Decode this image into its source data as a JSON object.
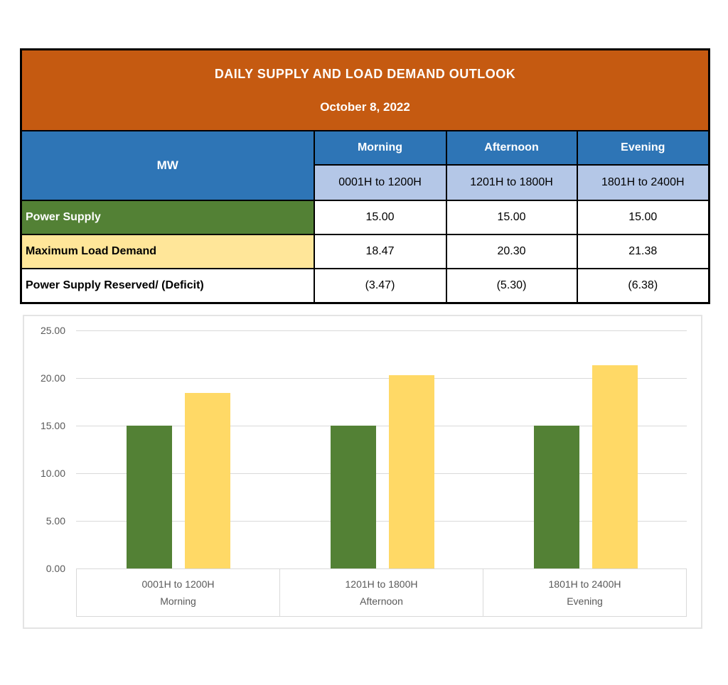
{
  "table": {
    "title": "DAILY SUPPLY AND LOAD DEMAND OUTLOOK",
    "date": "October 8, 2022",
    "unit_header": "MW",
    "periods": [
      {
        "label": "Morning",
        "time": "0001H to 1200H"
      },
      {
        "label": "Afternoon",
        "time": "1201H to 1800H"
      },
      {
        "label": "Evening",
        "time": "1801H to 2400H"
      }
    ],
    "rows": [
      {
        "label": "Power Supply",
        "values": [
          "15.00",
          "15.00",
          "15.00"
        ]
      },
      {
        "label": "Maximum Load Demand",
        "values": [
          "18.47",
          "20.30",
          "21.38"
        ]
      },
      {
        "label": "Power Supply Reserved/ (Deficit)",
        "values": [
          "(3.47)",
          "(5.30)",
          "(6.38)"
        ]
      }
    ]
  },
  "colors": {
    "banner_bg": "#C55A11",
    "banner_text": "#FFFFFF",
    "header_blue": "#2E75B6",
    "header_blue_text": "#FFFFFF",
    "subheader_blue": "#B4C7E7",
    "supply_green": "#538135",
    "supply_green_text": "#FFFFFF",
    "demand_yellow": "#FFE699",
    "chart_green": "#538135",
    "chart_yellow": "#FFD966",
    "grid_gray": "#D9D9D9",
    "axis_text_gray": "#595959"
  },
  "chart_data": {
    "type": "bar",
    "categories": [
      "0001H to 1200H",
      "1201H to 1800H",
      "1801H to 2400H"
    ],
    "category_sublabels": [
      "Morning",
      "Afternoon",
      "Evening"
    ],
    "series": [
      {
        "name": "Power Supply",
        "color": "#538135",
        "values": [
          15.0,
          15.0,
          15.0
        ]
      },
      {
        "name": "Maximum Load Demand",
        "color": "#FFD966",
        "values": [
          18.47,
          20.3,
          21.38
        ]
      }
    ],
    "title": "",
    "xlabel": "",
    "ylabel": "",
    "ylim": [
      0,
      25
    ],
    "ytick_step": 5,
    "grid": true,
    "legend_position": "none"
  }
}
